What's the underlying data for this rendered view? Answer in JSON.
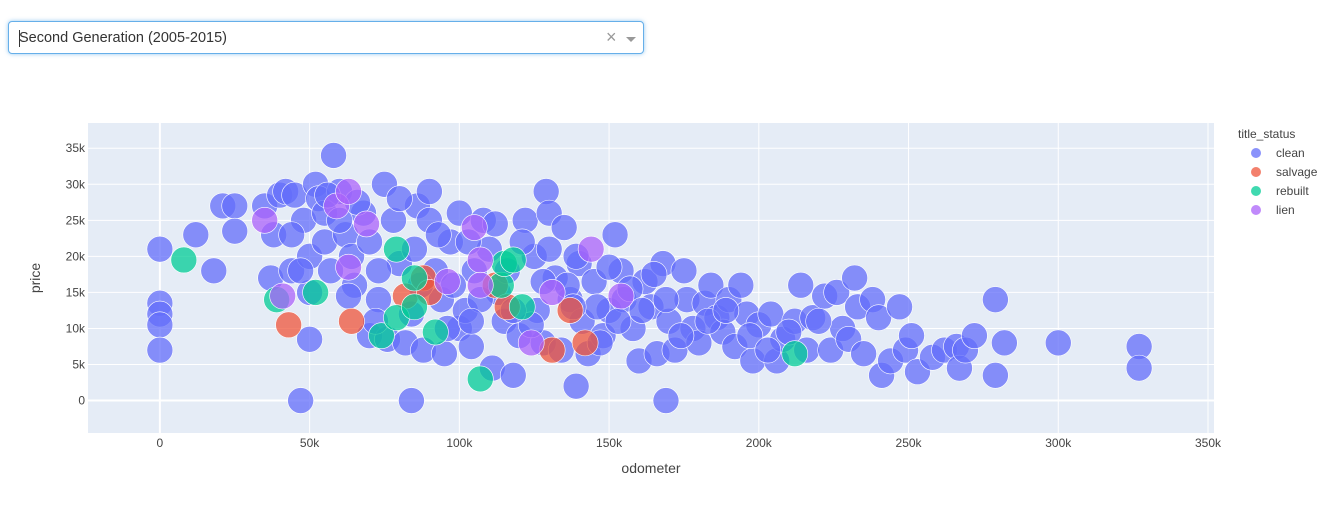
{
  "dropdown": {
    "selected": "Second Generation (2005-2015)",
    "clear_glyph": "×"
  },
  "colors": {
    "plot_bg": "#e5ecf6",
    "grid": "#ffffff"
  },
  "chart_data": {
    "type": "scatter",
    "xlabel": "odometer",
    "ylabel": "price",
    "xlim": [
      -24000,
      352000
    ],
    "ylim": [
      -4500,
      38500
    ],
    "x_ticks": [
      0,
      50000,
      100000,
      150000,
      200000,
      250000,
      300000,
      350000
    ],
    "x_tick_labels": [
      "0",
      "50k",
      "100k",
      "150k",
      "200k",
      "250k",
      "300k",
      "350k"
    ],
    "y_ticks": [
      0,
      5000,
      10000,
      15000,
      20000,
      25000,
      30000,
      35000
    ],
    "y_tick_labels": [
      "0",
      "5k",
      "10k",
      "15k",
      "20k",
      "25k",
      "30k",
      "35k"
    ],
    "grid": true,
    "legend_title": "title_status",
    "legend_position": "right",
    "series": [
      {
        "name": "clean",
        "color": "#636efa",
        "points": [
          [
            0,
            21000
          ],
          [
            0,
            13500
          ],
          [
            0,
            12000
          ],
          [
            0,
            10500
          ],
          [
            0,
            7000
          ],
          [
            12000,
            23000
          ],
          [
            18000,
            18000
          ],
          [
            21000,
            27000
          ],
          [
            25000,
            27000
          ],
          [
            25000,
            23500
          ],
          [
            35000,
            27000
          ],
          [
            37000,
            17000
          ],
          [
            38000,
            23000
          ],
          [
            40000,
            28500
          ],
          [
            42000,
            29000
          ],
          [
            44000,
            18000
          ],
          [
            45000,
            28500
          ],
          [
            48000,
            25000
          ],
          [
            50000,
            8500
          ],
          [
            50000,
            20000
          ],
          [
            50000,
            15000
          ],
          [
            52000,
            30000
          ],
          [
            53000,
            28000
          ],
          [
            55000,
            26000
          ],
          [
            55000,
            22000
          ],
          [
            57000,
            18000
          ],
          [
            58000,
            34000
          ],
          [
            60000,
            29000
          ],
          [
            62000,
            23000
          ],
          [
            64000,
            20000
          ],
          [
            65000,
            16000
          ],
          [
            68000,
            26000
          ],
          [
            70000,
            9000
          ],
          [
            70000,
            22000
          ],
          [
            73000,
            14000
          ],
          [
            75000,
            30000
          ],
          [
            76000,
            8500
          ],
          [
            78000,
            25000
          ],
          [
            80000,
            19000
          ],
          [
            82000,
            8000
          ],
          [
            85000,
            21000
          ],
          [
            86000,
            27000
          ],
          [
            88000,
            7000
          ],
          [
            90000,
            29000
          ],
          [
            90000,
            25000
          ],
          [
            92000,
            18000
          ],
          [
            94000,
            14000
          ],
          [
            95000,
            6500
          ],
          [
            97000,
            22000
          ],
          [
            100000,
            26000
          ],
          [
            100000,
            10000
          ],
          [
            102000,
            12500
          ],
          [
            104000,
            7500
          ],
          [
            105000,
            18000
          ],
          [
            108000,
            25000
          ],
          [
            110000,
            21000
          ],
          [
            111000,
            4500
          ],
          [
            113000,
            15000
          ],
          [
            115000,
            11000
          ],
          [
            118000,
            3500
          ],
          [
            120000,
            9000
          ],
          [
            122000,
            25000
          ],
          [
            125000,
            20000
          ],
          [
            126000,
            12500
          ],
          [
            128000,
            8000
          ],
          [
            129000,
            29000
          ],
          [
            130000,
            26000
          ],
          [
            132000,
            17000
          ],
          [
            134000,
            7000
          ],
          [
            135000,
            24000
          ],
          [
            137000,
            14000
          ],
          [
            140000,
            19000
          ],
          [
            141000,
            11000
          ],
          [
            143000,
            6500
          ],
          [
            145000,
            16500
          ],
          [
            148000,
            9000
          ],
          [
            150000,
            12500
          ],
          [
            152000,
            23000
          ],
          [
            154000,
            18000
          ],
          [
            155000,
            14000
          ],
          [
            158000,
            10000
          ],
          [
            160000,
            5500
          ],
          [
            162000,
            16500
          ],
          [
            164000,
            13000
          ],
          [
            166000,
            6500
          ],
          [
            168000,
            19000
          ],
          [
            170000,
            11000
          ],
          [
            172000,
            7000
          ],
          [
            175000,
            18000
          ],
          [
            176000,
            14000
          ],
          [
            178000,
            10000
          ],
          [
            180000,
            8000
          ],
          [
            182000,
            13500
          ],
          [
            184000,
            16000
          ],
          [
            186000,
            11500
          ],
          [
            188000,
            9500
          ],
          [
            190000,
            14000
          ],
          [
            192000,
            7500
          ],
          [
            194000,
            16000
          ],
          [
            196000,
            12000
          ],
          [
            198000,
            5500
          ],
          [
            200000,
            10500
          ],
          [
            204000,
            12000
          ],
          [
            206000,
            5500
          ],
          [
            208000,
            8500
          ],
          [
            212000,
            11000
          ],
          [
            214000,
            16000
          ],
          [
            216000,
            7000
          ],
          [
            218000,
            11500
          ],
          [
            222000,
            14500
          ],
          [
            224000,
            7000
          ],
          [
            226000,
            15000
          ],
          [
            228000,
            10000
          ],
          [
            230000,
            8500
          ],
          [
            232000,
            17000
          ],
          [
            233000,
            13000
          ],
          [
            235000,
            6500
          ],
          [
            238000,
            14000
          ],
          [
            240000,
            11500
          ],
          [
            241000,
            3500
          ],
          [
            244000,
            5500
          ],
          [
            247000,
            13000
          ],
          [
            249000,
            7000
          ],
          [
            251000,
            9000
          ],
          [
            253000,
            4000
          ],
          [
            258000,
            6000
          ],
          [
            262000,
            7000
          ],
          [
            266000,
            7500
          ],
          [
            267000,
            4500
          ],
          [
            269000,
            7000
          ],
          [
            272000,
            9000
          ],
          [
            279000,
            14000
          ],
          [
            279000,
            3500
          ],
          [
            282000,
            8000
          ],
          [
            300000,
            8000
          ],
          [
            327000,
            7500
          ],
          [
            327000,
            4500
          ],
          [
            56000,
            28500
          ],
          [
            60000,
            25000
          ],
          [
            66000,
            27500
          ],
          [
            73000,
            18000
          ],
          [
            80000,
            28000
          ],
          [
            87000,
            16000
          ],
          [
            93000,
            23000
          ],
          [
            98000,
            16000
          ],
          [
            103000,
            22000
          ],
          [
            107000,
            14000
          ],
          [
            112000,
            24500
          ],
          [
            116000,
            18000
          ],
          [
            121000,
            22000
          ],
          [
            124000,
            10500
          ],
          [
            130000,
            21000
          ],
          [
            136000,
            16000
          ],
          [
            139000,
            20000
          ],
          [
            146000,
            13000
          ],
          [
            150000,
            18500
          ],
          [
            157000,
            15500
          ],
          [
            161000,
            12500
          ],
          [
            165000,
            17500
          ],
          [
            169000,
            14000
          ],
          [
            174000,
            9000
          ],
          [
            183000,
            11000
          ],
          [
            189000,
            12500
          ],
          [
            197000,
            9000
          ],
          [
            203000,
            7000
          ],
          [
            210000,
            9500
          ],
          [
            220000,
            11000
          ],
          [
            44000,
            23000
          ],
          [
            47000,
            18000
          ],
          [
            63000,
            14500
          ],
          [
            72000,
            11000
          ],
          [
            84000,
            12000
          ],
          [
            96000,
            10000
          ],
          [
            104000,
            11000
          ],
          [
            118000,
            12500
          ],
          [
            128000,
            16500
          ],
          [
            138000,
            13000
          ],
          [
            147000,
            8000
          ],
          [
            153000,
            11000
          ],
          [
            169000,
            0
          ],
          [
            47000,
            0
          ],
          [
            84000,
            0
          ],
          [
            139000,
            2000
          ]
        ]
      },
      {
        "name": "salvage",
        "color": "#ef553b",
        "points": [
          [
            43000,
            10500
          ],
          [
            64000,
            11000
          ],
          [
            82000,
            14500
          ],
          [
            88000,
            17000
          ],
          [
            90000,
            15000
          ],
          [
            112000,
            16000
          ],
          [
            116000,
            13000
          ],
          [
            131000,
            7000
          ],
          [
            137000,
            12500
          ],
          [
            142000,
            8000
          ]
        ]
      },
      {
        "name": "rebuilt",
        "color": "#00cc96",
        "points": [
          [
            8000,
            19500
          ],
          [
            39000,
            14000
          ],
          [
            52000,
            15000
          ],
          [
            74000,
            9000
          ],
          [
            79000,
            11500
          ],
          [
            79000,
            21000
          ],
          [
            85000,
            13000
          ],
          [
            85000,
            17000
          ],
          [
            92000,
            9500
          ],
          [
            107000,
            3000
          ],
          [
            114000,
            16000
          ],
          [
            115000,
            19000
          ],
          [
            118000,
            19500
          ],
          [
            121000,
            13000
          ],
          [
            212000,
            6500
          ]
        ]
      },
      {
        "name": "lien",
        "color": "#ab63fa",
        "points": [
          [
            35000,
            25000
          ],
          [
            41000,
            14500
          ],
          [
            59000,
            27000
          ],
          [
            63000,
            29000
          ],
          [
            63000,
            18500
          ],
          [
            69000,
            24500
          ],
          [
            96000,
            16500
          ],
          [
            105000,
            24000
          ],
          [
            107000,
            19500
          ],
          [
            107000,
            16000
          ],
          [
            124000,
            8000
          ],
          [
            131000,
            15000
          ],
          [
            144000,
            21000
          ],
          [
            154000,
            14500
          ]
        ]
      }
    ]
  }
}
